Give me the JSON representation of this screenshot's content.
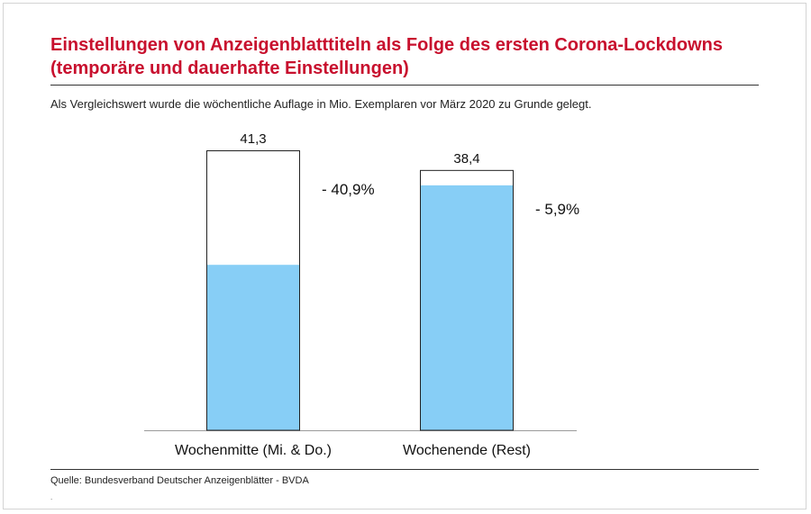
{
  "title_line1": "Einstellungen von Anzeigenblatttiteln als Folge des ersten  Corona-Lockdowns",
  "title_line2": "(temporäre und dauerhafte Einstellungen)",
  "subtitle": "Als Vergleichswert wurde die wöchentliche Auflage in Mio. Exemplaren vor März 2020 zu Grunde gelegt.",
  "source": "Quelle: Bundesverband  Deutscher Anzeigenblätter - BVDA",
  "footnote_mark": ".",
  "colors": {
    "title": "#c8102e",
    "remaining": "#87cef6",
    "discontinued": "#ffffff",
    "outline": "#222222"
  },
  "chart_data": {
    "type": "bar",
    "categories": [
      "Wochenmitte (Mi. & Do.)",
      "Wochenende (Rest)"
    ],
    "values": [
      41.3,
      38.4
    ],
    "value_labels": [
      "41,3",
      "38,4"
    ],
    "change_labels": [
      "- 40,9%",
      "- 5,9%"
    ],
    "change_percent": [
      -40.9,
      -5.9
    ],
    "remaining_fraction": [
      0.591,
      0.941
    ],
    "ylim": [
      0,
      41.3
    ],
    "grid": false,
    "xlabel": "",
    "ylabel": ""
  }
}
